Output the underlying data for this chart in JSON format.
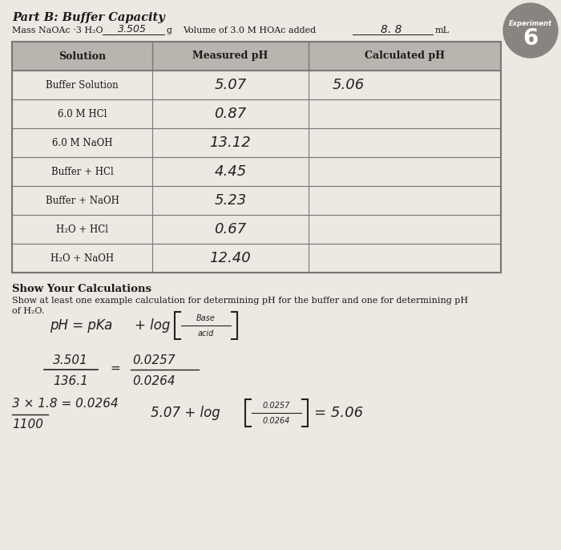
{
  "page_background": "#ede8e2",
  "title": "Part B: Buffer Capacity",
  "mass_label": "Mass NaOAc ·3 H₂O",
  "mass_value": "3.505",
  "mass_unit": "g",
  "volume_label": "Volume of 3.0 M HOAc added",
  "volume_value": "8. 8",
  "volume_unit": "mL",
  "experiment_label": "Experiment",
  "experiment_number": "6",
  "table_headers": [
    "Solution",
    "Measured pH",
    "Calculated pH"
  ],
  "table_rows": [
    [
      "Buffer Solution",
      "5.07",
      "5.06"
    ],
    [
      "6.0 M HCl",
      "0.87",
      ""
    ],
    [
      "6.0 M NaOH",
      "13.12",
      ""
    ],
    [
      "Buffer + HCl",
      "4.45",
      ""
    ],
    [
      "Buffer + NaOH",
      "5.23",
      ""
    ],
    [
      "H₂O + HCl",
      "0.67",
      ""
    ],
    [
      "H₂O + NaOH",
      "12.40",
      ""
    ]
  ],
  "calc_title": "Show Your Calculations",
  "calc_subtitle1": "Show at least one example calculation for determining pH for the buffer and one for determining pH",
  "calc_subtitle2": "of H₂O.",
  "header_bg": "#b8b4ae",
  "row_bg": "#ede8e2",
  "table_border": "#777777",
  "text_color": "#1a1a1a",
  "handwriting_color": "#222222",
  "circle_color": "#888580"
}
